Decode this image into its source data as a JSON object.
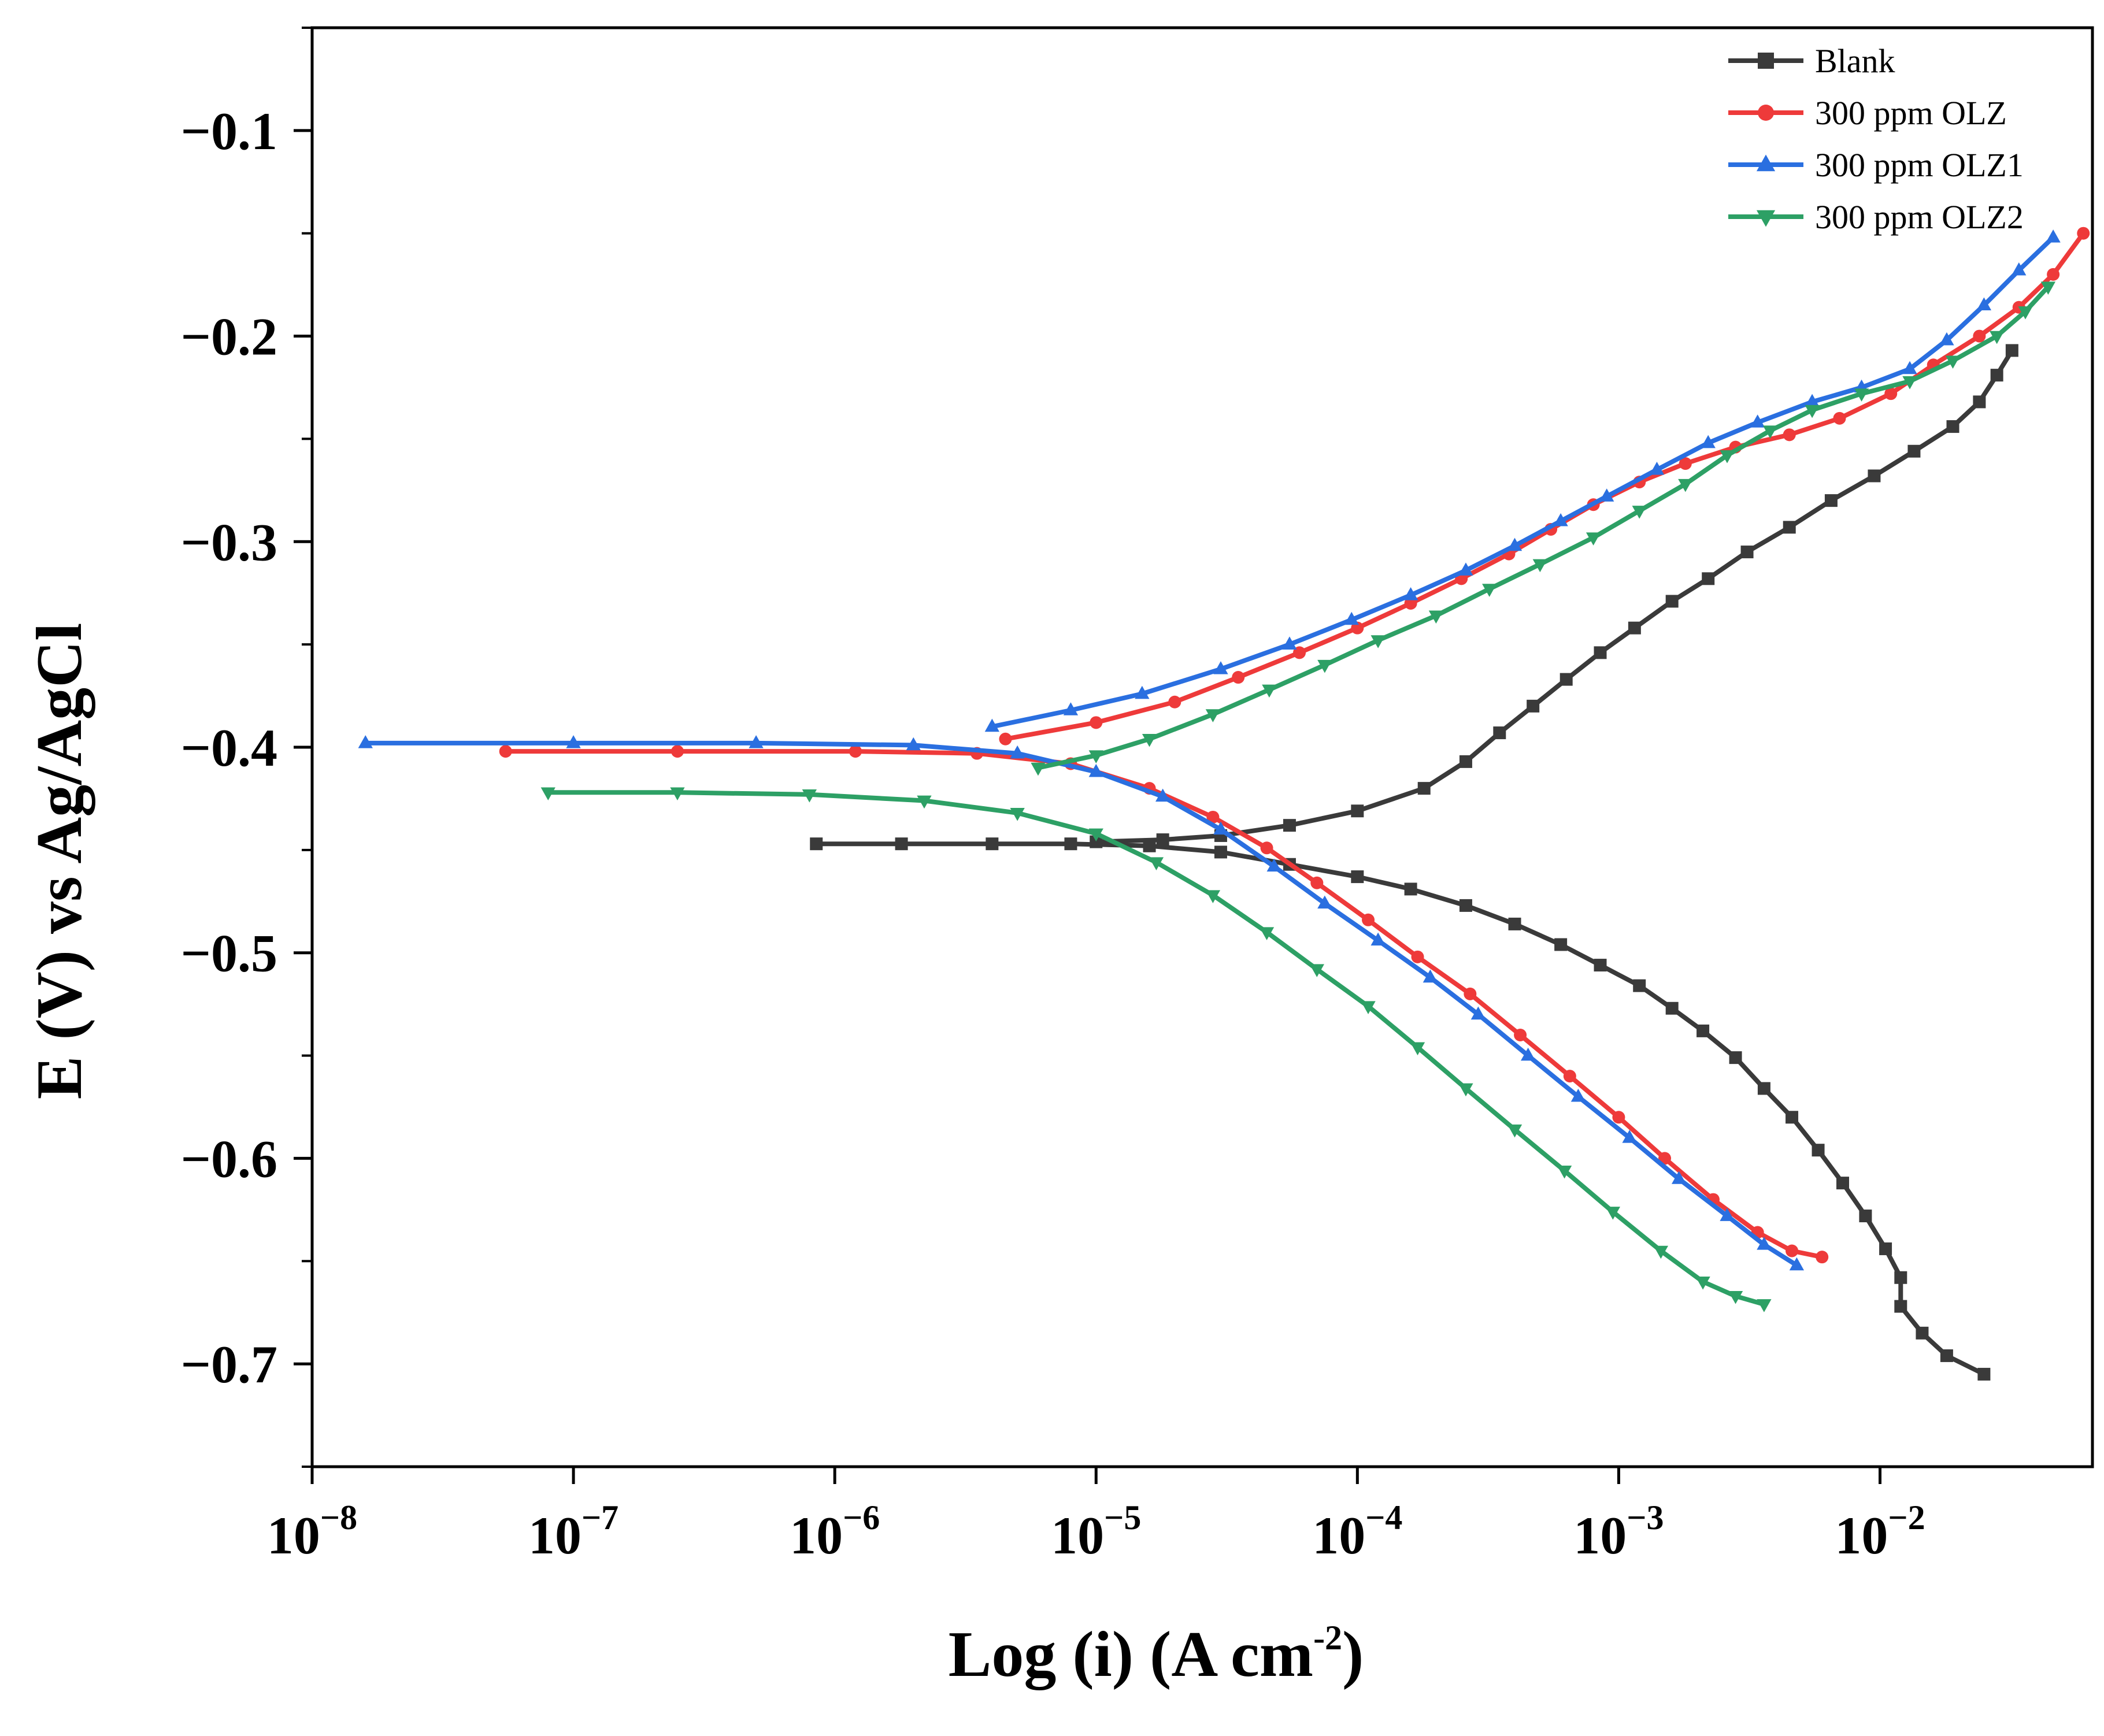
{
  "chart_data": {
    "type": "line",
    "title": "",
    "xlabel": {
      "main": "Log (i) (A cm",
      "sup": "-2",
      "close": ")"
    },
    "ylabel": "E (V) vs Ag/AgCl",
    "x_scale": "log",
    "xlim": [
      1e-08,
      0.065
    ],
    "ylim": [
      -0.75,
      -0.05
    ],
    "x_ticks": [
      {
        "value": 1e-08,
        "base": "10",
        "exp": "−8"
      },
      {
        "value": 1e-07,
        "base": "10",
        "exp": "−7"
      },
      {
        "value": 1e-06,
        "base": "10",
        "exp": "−6"
      },
      {
        "value": 1e-05,
        "base": "10",
        "exp": "−5"
      },
      {
        "value": 0.0001,
        "base": "10",
        "exp": "−4"
      },
      {
        "value": 0.001,
        "base": "10",
        "exp": "−3"
      },
      {
        "value": 0.01,
        "base": "10",
        "exp": "−2"
      }
    ],
    "y_ticks": [
      {
        "value": -0.1,
        "label": "−0.1"
      },
      {
        "value": -0.2,
        "label": "−0.2"
      },
      {
        "value": -0.3,
        "label": "−0.3"
      },
      {
        "value": -0.4,
        "label": "−0.4"
      },
      {
        "value": -0.5,
        "label": "−0.5"
      },
      {
        "value": -0.6,
        "label": "−0.6"
      },
      {
        "value": -0.7,
        "label": "−0.7"
      }
    ],
    "legend_position": "top-right",
    "series": [
      {
        "name": "Blank",
        "color": "#3a3a3a",
        "marker": "square",
        "anodic": [
          [
            1e-05,
            -0.446
          ],
          [
            1.8e-05,
            -0.445
          ],
          [
            3e-05,
            -0.443
          ],
          [
            5.5e-05,
            -0.438
          ],
          [
            0.0001,
            -0.431
          ],
          [
            0.00018,
            -0.42
          ],
          [
            0.00026,
            -0.407
          ],
          [
            0.00035,
            -0.393
          ],
          [
            0.00047,
            -0.38
          ],
          [
            0.00063,
            -0.367
          ],
          [
            0.00085,
            -0.354
          ],
          [
            0.00115,
            -0.342
          ],
          [
            0.0016,
            -0.329
          ],
          [
            0.0022,
            -0.318
          ],
          [
            0.0031,
            -0.305
          ],
          [
            0.0045,
            -0.293
          ],
          [
            0.0065,
            -0.28
          ],
          [
            0.0095,
            -0.268
          ],
          [
            0.0135,
            -0.256
          ],
          [
            0.019,
            -0.244
          ],
          [
            0.024,
            -0.232
          ],
          [
            0.028,
            -0.219
          ],
          [
            0.032,
            -0.207
          ]
        ],
        "cathodic": [
          [
            8.5e-07,
            -0.447
          ],
          [
            1.8e-06,
            -0.447
          ],
          [
            4e-06,
            -0.447
          ],
          [
            8e-06,
            -0.447
          ],
          [
            1.6e-05,
            -0.448
          ],
          [
            3e-05,
            -0.451
          ],
          [
            5.5e-05,
            -0.457
          ],
          [
            0.0001,
            -0.463
          ],
          [
            0.00016,
            -0.469
          ],
          [
            0.00026,
            -0.477
          ],
          [
            0.0004,
            -0.486
          ],
          [
            0.0006,
            -0.496
          ],
          [
            0.00085,
            -0.506
          ],
          [
            0.0012,
            -0.516
          ],
          [
            0.0016,
            -0.527
          ],
          [
            0.0021,
            -0.538
          ],
          [
            0.0028,
            -0.551
          ],
          [
            0.0036,
            -0.566
          ],
          [
            0.0046,
            -0.58
          ],
          [
            0.0058,
            -0.596
          ],
          [
            0.0072,
            -0.612
          ],
          [
            0.0088,
            -0.628
          ],
          [
            0.0105,
            -0.644
          ],
          [
            0.012,
            -0.658
          ],
          [
            0.012,
            -0.672
          ],
          [
            0.0145,
            -0.685
          ],
          [
            0.018,
            -0.696
          ],
          [
            0.025,
            -0.705
          ]
        ]
      },
      {
        "name": "300 ppm OLZ",
        "color": "#ee3a3a",
        "marker": "circle",
        "anodic": [
          [
            4.5e-06,
            -0.396
          ],
          [
            1e-05,
            -0.388
          ],
          [
            2e-05,
            -0.378
          ],
          [
            3.5e-05,
            -0.366
          ],
          [
            6e-05,
            -0.354
          ],
          [
            0.0001,
            -0.342
          ],
          [
            0.00016,
            -0.33
          ],
          [
            0.00025,
            -0.318
          ],
          [
            0.00038,
            -0.306
          ],
          [
            0.00055,
            -0.294
          ],
          [
            0.0008,
            -0.282
          ],
          [
            0.0012,
            -0.271
          ],
          [
            0.0018,
            -0.262
          ],
          [
            0.0028,
            -0.254
          ],
          [
            0.0045,
            -0.248
          ],
          [
            0.007,
            -0.24
          ],
          [
            0.011,
            -0.228
          ],
          [
            0.016,
            -0.214
          ],
          [
            0.024,
            -0.2
          ],
          [
            0.034,
            -0.186
          ],
          [
            0.046,
            -0.17
          ],
          [
            0.06,
            -0.15
          ]
        ],
        "cathodic": [
          [
            5.5e-08,
            -0.402
          ],
          [
            2.5e-07,
            -0.402
          ],
          [
            1.2e-06,
            -0.402
          ],
          [
            3.5e-06,
            -0.403
          ],
          [
            8e-06,
            -0.408
          ],
          [
            1.6e-05,
            -0.42
          ],
          [
            2.8e-05,
            -0.434
          ],
          [
            4.5e-05,
            -0.449
          ],
          [
            7e-05,
            -0.466
          ],
          [
            0.00011,
            -0.484
          ],
          [
            0.00017,
            -0.502
          ],
          [
            0.00027,
            -0.52
          ],
          [
            0.00042,
            -0.54
          ],
          [
            0.00065,
            -0.56
          ],
          [
            0.001,
            -0.58
          ],
          [
            0.0015,
            -0.6
          ],
          [
            0.0023,
            -0.62
          ],
          [
            0.0034,
            -0.636
          ],
          [
            0.0046,
            -0.645
          ],
          [
            0.006,
            -0.648
          ]
        ]
      },
      {
        "name": "300 ppm OLZ1",
        "color": "#2a6fe0",
        "marker": "triangle-up",
        "anodic": [
          [
            4e-06,
            -0.39
          ],
          [
            8e-06,
            -0.382
          ],
          [
            1.5e-05,
            -0.374
          ],
          [
            3e-05,
            -0.362
          ],
          [
            5.5e-05,
            -0.35
          ],
          [
            9.5e-05,
            -0.338
          ],
          [
            0.00016,
            -0.326
          ],
          [
            0.00026,
            -0.314
          ],
          [
            0.0004,
            -0.302
          ],
          [
            0.0006,
            -0.29
          ],
          [
            0.0009,
            -0.278
          ],
          [
            0.0014,
            -0.265
          ],
          [
            0.0022,
            -0.252
          ],
          [
            0.0034,
            -0.242
          ],
          [
            0.0055,
            -0.232
          ],
          [
            0.0085,
            -0.225
          ],
          [
            0.013,
            -0.216
          ],
          [
            0.018,
            -0.202
          ],
          [
            0.025,
            -0.185
          ],
          [
            0.034,
            -0.168
          ],
          [
            0.046,
            -0.152
          ]
        ],
        "cathodic": [
          [
            1.6e-08,
            -0.398
          ],
          [
            1e-07,
            -0.398
          ],
          [
            5e-07,
            -0.398
          ],
          [
            2e-06,
            -0.399
          ],
          [
            5e-06,
            -0.403
          ],
          [
            1e-05,
            -0.412
          ],
          [
            1.8e-05,
            -0.424
          ],
          [
            3e-05,
            -0.44
          ],
          [
            4.8e-05,
            -0.458
          ],
          [
            7.5e-05,
            -0.476
          ],
          [
            0.00012,
            -0.494
          ],
          [
            0.00019,
            -0.512
          ],
          [
            0.00029,
            -0.53
          ],
          [
            0.00045,
            -0.55
          ],
          [
            0.0007,
            -0.57
          ],
          [
            0.0011,
            -0.59
          ],
          [
            0.0017,
            -0.61
          ],
          [
            0.0026,
            -0.628
          ],
          [
            0.0036,
            -0.642
          ],
          [
            0.0048,
            -0.652
          ]
        ]
      },
      {
        "name": "300 ppm OLZ2",
        "color": "#2da065",
        "marker": "triangle-down",
        "anodic": [
          [
            6e-06,
            -0.41
          ],
          [
            1e-05,
            -0.404
          ],
          [
            1.6e-05,
            -0.396
          ],
          [
            2.8e-05,
            -0.384
          ],
          [
            4.6e-05,
            -0.372
          ],
          [
            7.5e-05,
            -0.36
          ],
          [
            0.00012,
            -0.348
          ],
          [
            0.0002,
            -0.336
          ],
          [
            0.00032,
            -0.323
          ],
          [
            0.0005,
            -0.311
          ],
          [
            0.0008,
            -0.298
          ],
          [
            0.0012,
            -0.285
          ],
          [
            0.0018,
            -0.272
          ],
          [
            0.0026,
            -0.258
          ],
          [
            0.0038,
            -0.246
          ],
          [
            0.0055,
            -0.236
          ],
          [
            0.0085,
            -0.228
          ],
          [
            0.013,
            -0.222
          ],
          [
            0.019,
            -0.212
          ],
          [
            0.028,
            -0.2
          ],
          [
            0.036,
            -0.188
          ],
          [
            0.044,
            -0.176
          ]
        ],
        "cathodic": [
          [
            8e-08,
            -0.422
          ],
          [
            2.5e-07,
            -0.422
          ],
          [
            8e-07,
            -0.423
          ],
          [
            2.2e-06,
            -0.426
          ],
          [
            5e-06,
            -0.432
          ],
          [
            1e-05,
            -0.442
          ],
          [
            1.7e-05,
            -0.456
          ],
          [
            2.8e-05,
            -0.472
          ],
          [
            4.5e-05,
            -0.49
          ],
          [
            7e-05,
            -0.508
          ],
          [
            0.00011,
            -0.526
          ],
          [
            0.00017,
            -0.546
          ],
          [
            0.00026,
            -0.566
          ],
          [
            0.0004,
            -0.586
          ],
          [
            0.00062,
            -0.606
          ],
          [
            0.00095,
            -0.626
          ],
          [
            0.00145,
            -0.645
          ],
          [
            0.0021,
            -0.66
          ],
          [
            0.0028,
            -0.667
          ],
          [
            0.0036,
            -0.671
          ]
        ]
      }
    ]
  }
}
